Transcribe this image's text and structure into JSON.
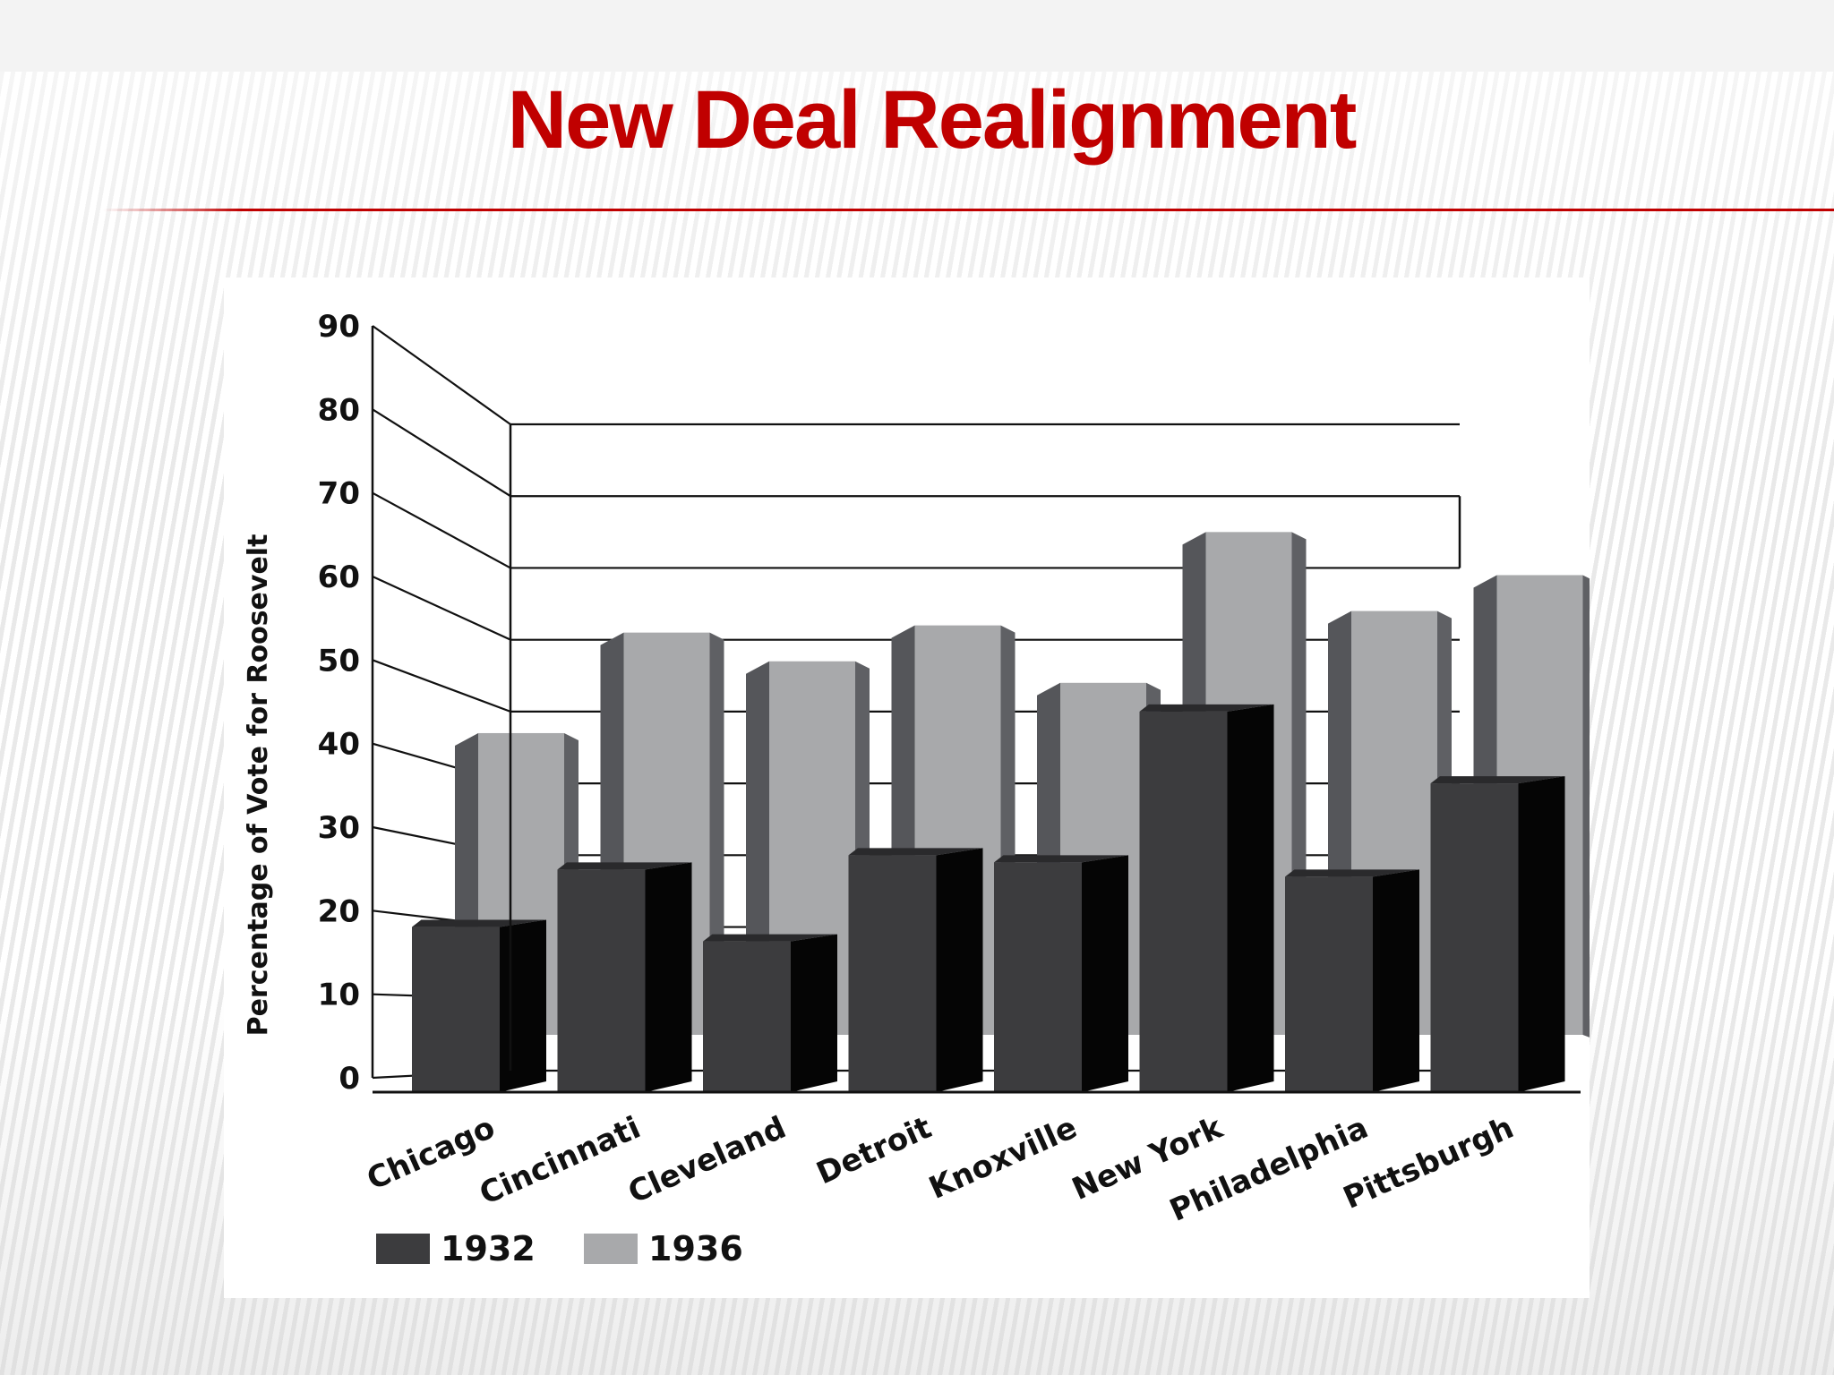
{
  "slide": {
    "title": "New Deal Realignment"
  },
  "colors": {
    "title": "#c00000",
    "series_1932": "#3c3c3e",
    "series_1936": "#a8a9ab",
    "axis": "#111111"
  },
  "chart_data": {
    "type": "bar",
    "title": "",
    "xlabel": "",
    "ylabel": "Percentage of Vote for Roosevelt",
    "ylim": [
      0,
      90
    ],
    "yticks": [
      0,
      10,
      20,
      30,
      40,
      50,
      60,
      70,
      80,
      90
    ],
    "grid": true,
    "legend": "bottom-left",
    "categories": [
      "Chicago",
      "Cincinnati",
      "Cleveland",
      "Detroit",
      "Knoxville",
      "New York",
      "Philadelphia",
      "Pittsburgh"
    ],
    "series": [
      {
        "name": "1932",
        "values": [
          20,
          28,
          18,
          30,
          29,
          50,
          27,
          40
        ]
      },
      {
        "name": "1936",
        "values": [
          47,
          61,
          57,
          62,
          54,
          75,
          64,
          69
        ]
      }
    ]
  }
}
